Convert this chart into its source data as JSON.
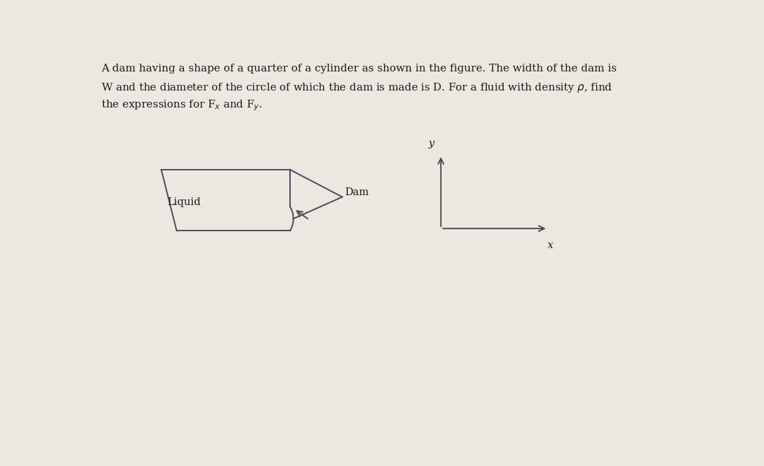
{
  "bg_color": "#ede8df",
  "line_color": "#4a4a5a",
  "text_color": "#1a1a1a",
  "dam_label": "Dam",
  "liquid_label": "Liquid",
  "x_label": "x",
  "y_label": "y",
  "fig_width": 10.8,
  "fig_height": 6.59,
  "dpi": 100,
  "title_lines": [
    "A dam having a shape of a quarter of a cylinder as shown in the figure. The width of the dam is",
    "W and the diameter of the circle of which the dam is made is D. For a fluid with density \\rho, find",
    "the expressions for F_x and F_y."
  ]
}
